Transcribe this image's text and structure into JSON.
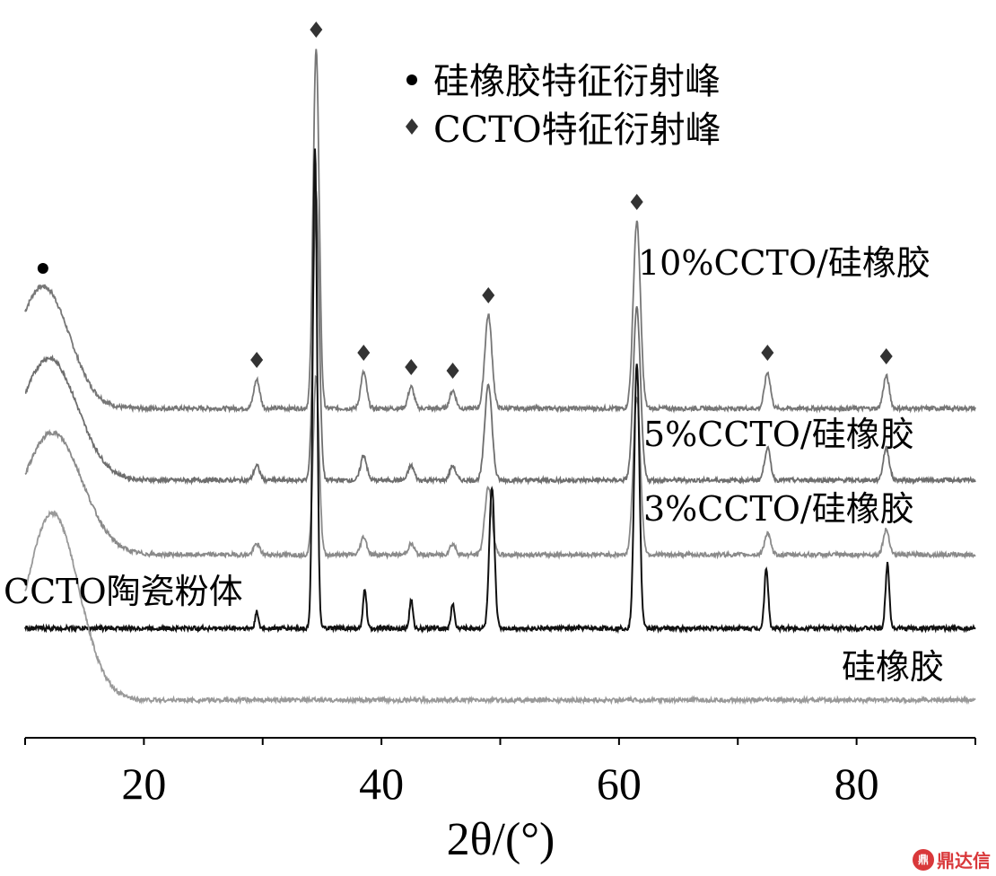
{
  "chart_data": {
    "type": "line",
    "title": "",
    "xlabel": "2θ/(°)",
    "ylabel": "",
    "xlim": [
      10,
      90
    ],
    "xticks": [
      20,
      40,
      60,
      80
    ],
    "grid": false,
    "legend_position": "top-center",
    "legend": [
      {
        "marker": "circle",
        "label": "硅橡胶特征衍射峰"
      },
      {
        "marker": "diamond",
        "label": "CCTO特征衍射峰"
      }
    ],
    "series": [
      {
        "name": "10%CCTO/硅橡胶",
        "color": "#777777",
        "baseline": 0.05,
        "hump": {
          "center": 11.5,
          "height": 0.34,
          "width": 2.2,
          "x_start": 10.0
        },
        "peaks": [
          [
            29.5,
            0.08,
            0.25
          ],
          [
            34.5,
            1.0,
            0.25
          ],
          [
            38.5,
            0.1,
            0.25
          ],
          [
            42.5,
            0.06,
            0.25
          ],
          [
            46.0,
            0.05,
            0.25
          ],
          [
            49.0,
            0.26,
            0.3
          ],
          [
            61.5,
            0.52,
            0.3
          ],
          [
            72.5,
            0.1,
            0.25
          ],
          [
            82.5,
            0.09,
            0.25
          ]
        ],
        "peak_markers": [
          29.5,
          34.5,
          38.5,
          42.5,
          46.0,
          49.0,
          61.5,
          72.5,
          82.5
        ],
        "hump_marker": 11.5
      },
      {
        "name": "5%CCTO/硅橡胶",
        "color": "#6e6e6e",
        "baseline": 0.05,
        "hump": {
          "center": 12.0,
          "height": 0.34,
          "width": 2.4,
          "x_start": 10.0
        },
        "peaks": [
          [
            29.5,
            0.04,
            0.25
          ],
          [
            34.5,
            0.8,
            0.25
          ],
          [
            38.5,
            0.07,
            0.25
          ],
          [
            42.5,
            0.04,
            0.25
          ],
          [
            46.0,
            0.04,
            0.25
          ],
          [
            49.0,
            0.27,
            0.3
          ],
          [
            61.5,
            0.48,
            0.3
          ],
          [
            72.5,
            0.09,
            0.25
          ],
          [
            82.5,
            0.09,
            0.25
          ]
        ]
      },
      {
        "name": "3%CCTO/硅橡胶",
        "color": "#8a8a8a",
        "baseline": 0.05,
        "hump": {
          "center": 12.3,
          "height": 0.34,
          "width": 2.5,
          "x_start": 10.0
        },
        "peaks": [
          [
            29.5,
            0.03,
            0.25
          ],
          [
            34.5,
            0.5,
            0.25
          ],
          [
            38.5,
            0.05,
            0.25
          ],
          [
            42.5,
            0.03,
            0.25
          ],
          [
            46.0,
            0.03,
            0.25
          ],
          [
            49.0,
            0.19,
            0.3
          ],
          [
            61.5,
            0.44,
            0.3
          ],
          [
            72.5,
            0.06,
            0.25
          ],
          [
            82.5,
            0.07,
            0.25
          ]
        ]
      },
      {
        "name": "CCTO陶瓷粉体",
        "color": "#111111",
        "baseline": 0.05,
        "peaks": [
          [
            29.5,
            0.05,
            0.12
          ],
          [
            34.4,
            1.34,
            0.18
          ],
          [
            38.6,
            0.11,
            0.14
          ],
          [
            42.5,
            0.08,
            0.14
          ],
          [
            46.0,
            0.07,
            0.14
          ],
          [
            49.3,
            0.39,
            0.22
          ],
          [
            61.5,
            0.74,
            0.22
          ],
          [
            72.4,
            0.17,
            0.16
          ],
          [
            82.6,
            0.18,
            0.16
          ]
        ]
      },
      {
        "name": "硅橡胶",
        "color": "#999999",
        "baseline": 0.05,
        "hump": {
          "center": 12.3,
          "height": 0.52,
          "width": 2.2,
          "x_start": 10.0
        },
        "peaks": []
      }
    ]
  },
  "watermark": {
    "logo": "鼎",
    "text": "鼎达信"
  }
}
